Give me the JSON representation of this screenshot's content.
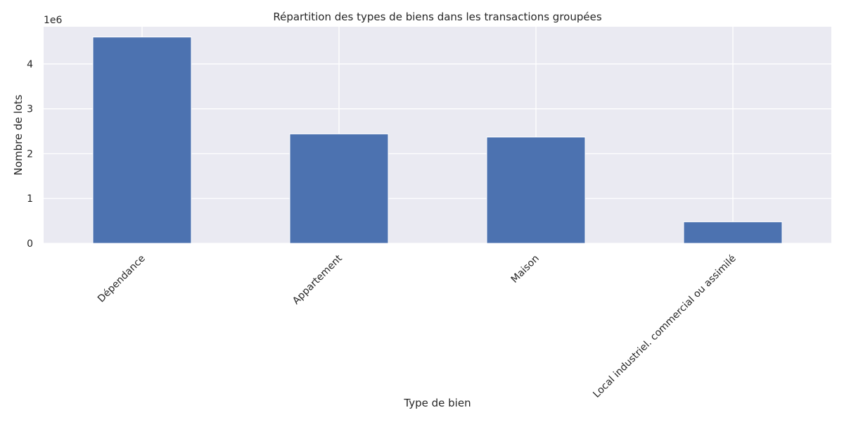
{
  "chart_data": {
    "type": "bar",
    "title": "Répartition des types de biens dans les transactions groupées",
    "xlabel": "Type de bien",
    "ylabel": "Nombre de lots",
    "y_offset_label": "1e6",
    "categories": [
      "Dépendance",
      "Appartement",
      "Maison",
      "Local industriel. commercial ou assimilé"
    ],
    "values": [
      4600000,
      2440000,
      2370000,
      480000
    ],
    "ylim": [
      0,
      4830000
    ],
    "yticks": [
      0,
      1000000,
      2000000,
      3000000,
      4000000
    ],
    "ytick_labels": [
      "0",
      "1",
      "2",
      "3",
      "4"
    ],
    "x_tick_rotation": 45,
    "grid": true,
    "legend": "none",
    "colors": {
      "bar": "#4c72b0",
      "plot_background": "#eaeaf2",
      "grid": "#ffffff",
      "text": "#262626"
    }
  }
}
